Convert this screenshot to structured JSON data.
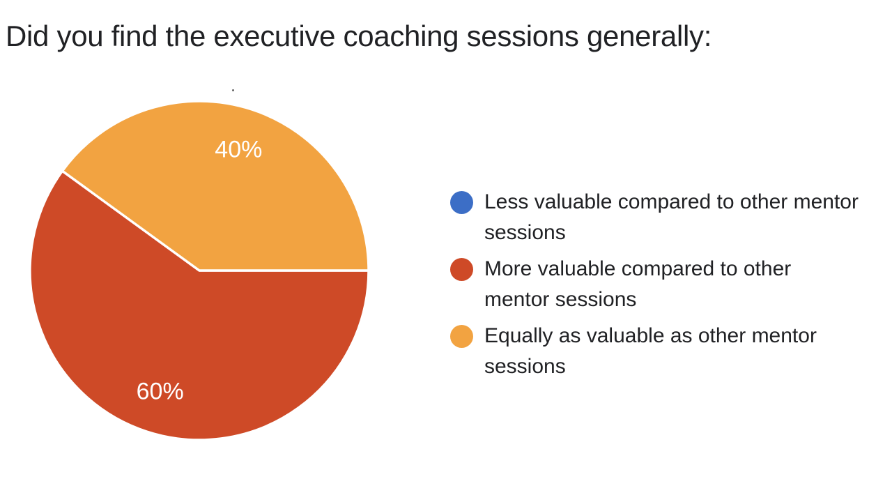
{
  "page": {
    "background": "#ffffff"
  },
  "chart_data": {
    "type": "pie",
    "title": "Did you find the executive coaching sessions generally:",
    "categories": [
      "Less valuable compared to other mentor sessions",
      "More valuable compared to other mentor sessions",
      "Equally as valuable as other mentor sessions"
    ],
    "values": [
      0,
      60,
      40
    ],
    "unit": "percent",
    "colors": [
      "#3C6EC6",
      "#CE4A27",
      "#F2A341"
    ],
    "slice_labels": [
      "",
      "60%",
      "40%"
    ],
    "slice_label_color": "#FFFFFF",
    "title_color": "#202124",
    "start_angle": "3-oclock",
    "direction": "clockwise",
    "legend_position": "right",
    "legend": {
      "items": [
        {
          "label": "Less valuable compared to other mentor sessions",
          "lines": [
            "Less valuable compared to other mentor",
            "sessions"
          ]
        },
        {
          "label": "More valuable compared to other mentor sessions",
          "lines": [
            "More valuable compared to other",
            "mentor sessions"
          ]
        },
        {
          "label": "Equally as valuable as other mentor sessions",
          "lines": [
            "Equally as valuable as other mentor",
            "sessions"
          ]
        }
      ]
    }
  }
}
